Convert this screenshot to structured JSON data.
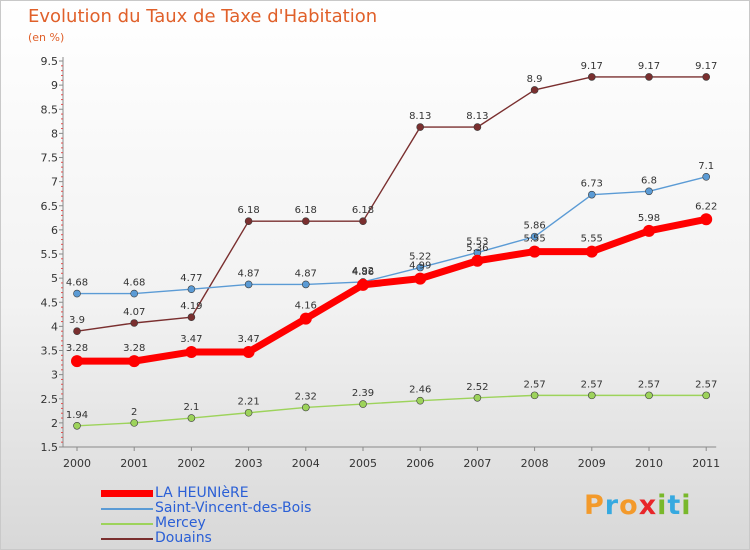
{
  "header": {
    "title": "Evolution du Taux de Taxe d'Habitation",
    "unit": "(en %)"
  },
  "brand": {
    "letters": [
      "P",
      "r",
      "o",
      "x",
      "i",
      "t",
      "i"
    ],
    "colors": [
      "#f39a2b",
      "#36a9e0",
      "#f39a2b",
      "#e8262a",
      "#79b82b",
      "#36a9e0",
      "#79b82b"
    ]
  },
  "chart_data": {
    "type": "line",
    "title": "Evolution du Taux de Taxe d'Habitation",
    "subtitle": "(en %)",
    "xlabel": "",
    "ylabel": "",
    "x": [
      "2000",
      "2001",
      "2002",
      "2003",
      "2004",
      "2005",
      "2006",
      "2007",
      "2008",
      "2009",
      "2010",
      "2011"
    ],
    "ylim": [
      1.5,
      9.5
    ],
    "yticks": [
      "1.5",
      "2",
      "2.5",
      "3",
      "3.5",
      "4",
      "4.5",
      "5",
      "5.5",
      "6",
      "6.5",
      "7",
      "7.5",
      "8",
      "8.5",
      "9",
      "9.5"
    ],
    "grid": false,
    "legend_position": "bottom-left",
    "series": [
      {
        "name": "LA HEUNIèRE",
        "color": "#ff0000",
        "values": [
          3.28,
          3.28,
          3.47,
          3.47,
          4.16,
          4.86,
          4.99,
          5.36,
          5.55,
          5.55,
          5.98,
          6.22
        ],
        "labels": [
          "3.28",
          "3.28",
          "3.47",
          "3.47",
          "4.16",
          "4.86",
          "4.99",
          "5.36",
          "5.55",
          "5.55",
          "5.98",
          "6.22"
        ]
      },
      {
        "name": "Saint-Vincent-des-Bois",
        "color": "#5b9bd5",
        "values": [
          4.68,
          4.68,
          4.77,
          4.87,
          4.87,
          4.92,
          5.22,
          5.53,
          5.86,
          6.73,
          6.8,
          7.1
        ],
        "labels": [
          "4.68",
          "4.68",
          "4.77",
          "4.87",
          "4.87",
          "4.92",
          "5.22",
          "5.53",
          "5.86",
          "6.73",
          "6.8",
          "7.1"
        ]
      },
      {
        "name": "Mercey",
        "color": "#9dd35b",
        "values": [
          1.94,
          2,
          2.1,
          2.21,
          2.32,
          2.39,
          2.46,
          2.52,
          2.57,
          2.57,
          2.57,
          2.57
        ],
        "labels": [
          "1.94",
          "2",
          "2.1",
          "2.21",
          "2.32",
          "2.39",
          "2.46",
          "2.52",
          "2.57",
          "2.57",
          "2.57",
          "2.57"
        ]
      },
      {
        "name": "Douains",
        "color": "#7a2f2f",
        "values": [
          3.9,
          4.07,
          4.19,
          6.18,
          6.18,
          6.18,
          8.13,
          8.13,
          8.9,
          9.17,
          9.17,
          9.17
        ],
        "labels": [
          "3.9",
          "4.07",
          "4.19",
          "6.18",
          "6.18",
          "6.18",
          "8.13",
          "8.13",
          "8.9",
          "9.17",
          "9.17",
          "9.17"
        ]
      }
    ]
  }
}
